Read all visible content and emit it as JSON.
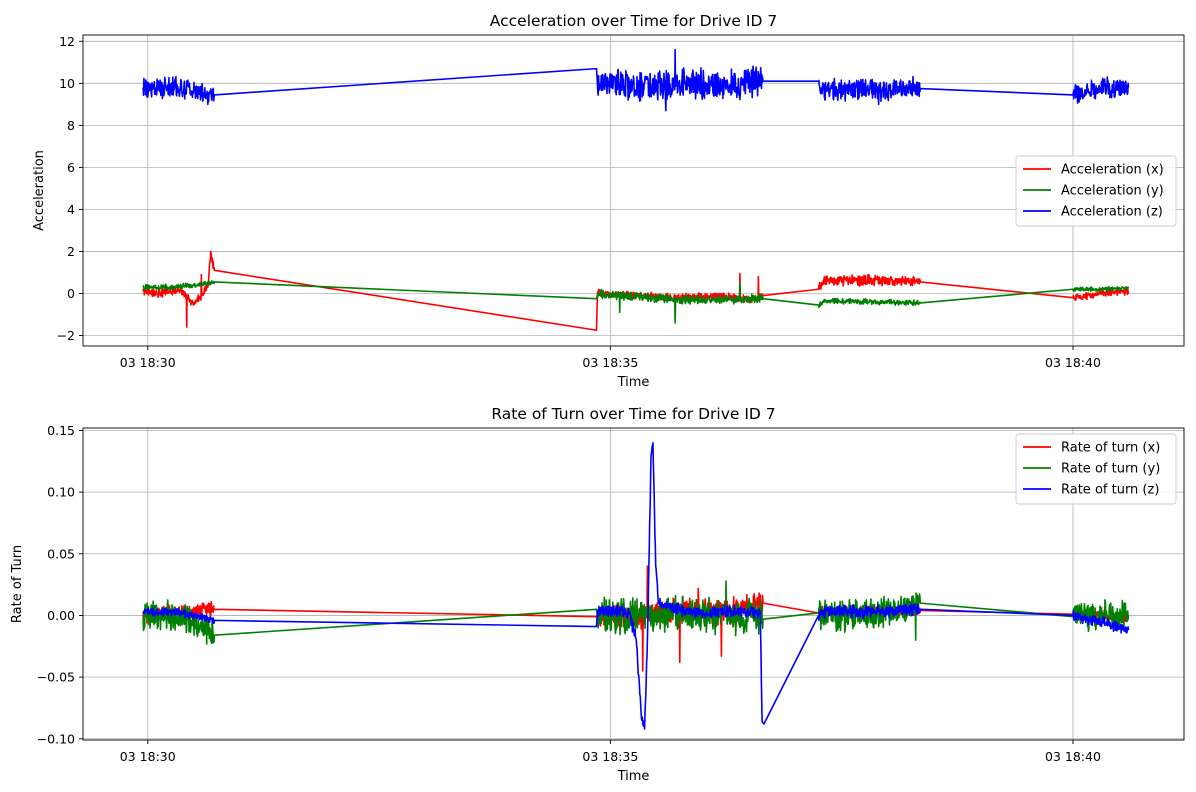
{
  "chart_data": [
    {
      "type": "line",
      "title": "Acceleration over Time for Drive ID 7",
      "xlabel": "Time",
      "ylabel": "Acceleration",
      "xlim_minutes": [
        29.3,
        41.2
      ],
      "ylim": [
        -2.5,
        12.3
      ],
      "yticks": [
        -2,
        0,
        2,
        4,
        6,
        8,
        10,
        12
      ],
      "xticks": [
        {
          "value": 30,
          "label": "03 18:30"
        },
        {
          "value": 35,
          "label": "03 18:35"
        },
        {
          "value": 40,
          "label": "03 18:40"
        }
      ],
      "grid": true,
      "legend_position": "center-right",
      "segments": [
        [
          29.95,
          30.72
        ],
        [
          34.85,
          36.65
        ],
        [
          37.25,
          38.35
        ],
        [
          40.0,
          40.6
        ]
      ],
      "series": [
        {
          "name": "Acceleration (x)",
          "color": "#ff0000",
          "points": [
            [
              29.95,
              0.1
            ],
            [
              30.15,
              0.0
            ],
            [
              30.35,
              0.2
            ],
            [
              30.5,
              -0.5
            ],
            [
              30.65,
              0.3
            ],
            [
              30.68,
              2.0
            ],
            [
              30.72,
              1.1
            ],
            [
              34.85,
              -1.75
            ],
            [
              34.86,
              0.0
            ],
            [
              35.3,
              -0.1
            ],
            [
              35.8,
              -0.2
            ],
            [
              36.2,
              -0.1
            ],
            [
              36.5,
              -0.3
            ],
            [
              36.65,
              -0.1
            ],
            [
              37.25,
              0.2
            ],
            [
              37.3,
              0.6
            ],
            [
              37.8,
              0.65
            ],
            [
              38.35,
              0.55
            ],
            [
              40.0,
              -0.2
            ],
            [
              40.3,
              0.0
            ],
            [
              40.6,
              0.1
            ]
          ],
          "noise": [
            0.25,
            0.2,
            0.3,
            0.2
          ],
          "spikes": [
            [
              30.42,
              -1.6
            ],
            [
              30.58,
              0.9
            ],
            [
              35.3,
              0.35
            ],
            [
              36.2,
              -1.0
            ],
            [
              36.4,
              0.95
            ],
            [
              36.6,
              0.8
            ],
            [
              36.5,
              -1.05
            ]
          ]
        },
        {
          "name": "Acceleration (y)",
          "color": "#008000",
          "points": [
            [
              29.95,
              0.3
            ],
            [
              30.3,
              0.3
            ],
            [
              30.72,
              0.55
            ],
            [
              34.85,
              -0.25
            ],
            [
              34.86,
              -0.05
            ],
            [
              35.3,
              -0.15
            ],
            [
              35.8,
              -0.3
            ],
            [
              36.3,
              -0.3
            ],
            [
              36.65,
              -0.25
            ],
            [
              37.25,
              -0.55
            ],
            [
              37.3,
              -0.35
            ],
            [
              37.8,
              -0.4
            ],
            [
              38.35,
              -0.45
            ],
            [
              40.0,
              0.2
            ],
            [
              40.3,
              0.2
            ],
            [
              40.6,
              0.25
            ]
          ],
          "noise": [
            0.15,
            0.25,
            0.15,
            0.12
          ],
          "spikes": [
            [
              35.7,
              -1.4
            ],
            [
              35.1,
              -0.9
            ],
            [
              36.4,
              0.5
            ]
          ]
        },
        {
          "name": "Acceleration (z)",
          "color": "#0000ff",
          "points": [
            [
              29.95,
              9.8
            ],
            [
              30.3,
              9.8
            ],
            [
              30.72,
              9.45
            ],
            [
              34.85,
              10.7
            ],
            [
              34.86,
              10.0
            ],
            [
              35.3,
              9.8
            ],
            [
              35.8,
              10.0
            ],
            [
              36.3,
              9.9
            ],
            [
              36.65,
              10.1
            ],
            [
              37.25,
              10.1
            ],
            [
              37.3,
              9.7
            ],
            [
              37.8,
              9.7
            ],
            [
              38.35,
              9.75
            ],
            [
              40.0,
              9.45
            ],
            [
              40.3,
              9.8
            ],
            [
              40.6,
              9.8
            ]
          ],
          "noise": [
            0.6,
            0.85,
            0.65,
            0.55
          ],
          "spikes": [
            [
              35.7,
              11.6
            ],
            [
              35.6,
              8.7
            ],
            [
              37.9,
              9.0
            ]
          ]
        }
      ]
    },
    {
      "type": "line",
      "title": "Rate of Turn over Time for Drive ID 7",
      "xlabel": "Time",
      "ylabel": "Rate of Turn",
      "xlim_minutes": [
        29.3,
        41.2
      ],
      "ylim": [
        -0.101,
        0.152
      ],
      "yticks": [
        -0.1,
        -0.05,
        0.0,
        0.05,
        0.1,
        0.15
      ],
      "ytick_labels": [
        "−0.10",
        "−0.05",
        "0.00",
        "0.05",
        "0.10",
        "0.15"
      ],
      "xticks": [
        {
          "value": 30,
          "label": "03 18:30"
        },
        {
          "value": 35,
          "label": "03 18:35"
        },
        {
          "value": 40,
          "label": "03 18:40"
        }
      ],
      "grid": true,
      "legend_position": "upper-right",
      "segments": [
        [
          29.95,
          30.72
        ],
        [
          34.85,
          36.65
        ],
        [
          37.25,
          38.35
        ],
        [
          40.0,
          40.6
        ]
      ],
      "series": [
        {
          "name": "Rate of turn (x)",
          "color": "#ff0000",
          "points": [
            [
              29.95,
              0.0
            ],
            [
              30.3,
              0.002
            ],
            [
              30.72,
              0.005
            ],
            [
              34.85,
              -0.001
            ],
            [
              34.86,
              0.0
            ],
            [
              35.3,
              0.0
            ],
            [
              35.8,
              0.005
            ],
            [
              36.3,
              0.003
            ],
            [
              36.65,
              0.01
            ],
            [
              37.25,
              0.002
            ],
            [
              37.3,
              0.003
            ],
            [
              37.8,
              0.004
            ],
            [
              38.35,
              0.004
            ],
            [
              40.0,
              0.001
            ],
            [
              40.3,
              0.0
            ],
            [
              40.6,
              -0.002
            ]
          ],
          "noise": [
            0.007,
            0.012,
            0.005,
            0.005
          ],
          "spikes": [
            [
              35.4,
              0.04
            ],
            [
              35.35,
              -0.045
            ],
            [
              35.75,
              -0.038
            ],
            [
              36.2,
              -0.033
            ],
            [
              35.95,
              0.022
            ]
          ]
        },
        {
          "name": "Rate of turn (y)",
          "color": "#008000",
          "points": [
            [
              29.95,
              0.0
            ],
            [
              30.3,
              0.0
            ],
            [
              30.72,
              -0.016
            ],
            [
              34.85,
              0.005
            ],
            [
              34.86,
              0.0
            ],
            [
              35.3,
              0.0
            ],
            [
              35.8,
              0.0
            ],
            [
              36.3,
              0.0
            ],
            [
              36.65,
              -0.003
            ],
            [
              37.25,
              0.002
            ],
            [
              37.3,
              0.0
            ],
            [
              37.8,
              0.0
            ],
            [
              38.35,
              0.01
            ],
            [
              40.0,
              -0.001
            ],
            [
              40.3,
              0.0
            ],
            [
              40.6,
              0.0
            ]
          ],
          "noise": [
            0.015,
            0.017,
            0.015,
            0.014
          ],
          "spikes": [
            [
              36.25,
              0.028
            ],
            [
              36.3,
              -0.034
            ],
            [
              38.3,
              -0.02
            ]
          ]
        },
        {
          "name": "Rate of turn (z)",
          "color": "#0000ff",
          "points": [
            [
              29.95,
              0.003
            ],
            [
              30.3,
              0.003
            ],
            [
              30.72,
              -0.004
            ],
            [
              34.85,
              -0.009
            ],
            [
              34.86,
              0.004
            ],
            [
              35.2,
              0.003
            ],
            [
              35.28,
              -0.02
            ],
            [
              35.34,
              -0.085
            ],
            [
              35.37,
              -0.092
            ],
            [
              35.4,
              -0.02
            ],
            [
              35.44,
              0.13
            ],
            [
              35.46,
              0.14
            ],
            [
              35.49,
              0.04
            ],
            [
              35.52,
              0.01
            ],
            [
              35.8,
              0.003
            ],
            [
              36.3,
              0.003
            ],
            [
              36.62,
              0.003
            ],
            [
              36.64,
              -0.086
            ],
            [
              36.66,
              -0.088
            ],
            [
              37.25,
              0.0
            ],
            [
              37.3,
              0.003
            ],
            [
              37.8,
              0.003
            ],
            [
              38.35,
              0.005
            ],
            [
              40.0,
              0.0
            ],
            [
              40.3,
              -0.005
            ],
            [
              40.6,
              -0.012
            ]
          ],
          "noise": [
            0.004,
            0.006,
            0.006,
            0.005
          ],
          "spikes": []
        }
      ]
    }
  ]
}
